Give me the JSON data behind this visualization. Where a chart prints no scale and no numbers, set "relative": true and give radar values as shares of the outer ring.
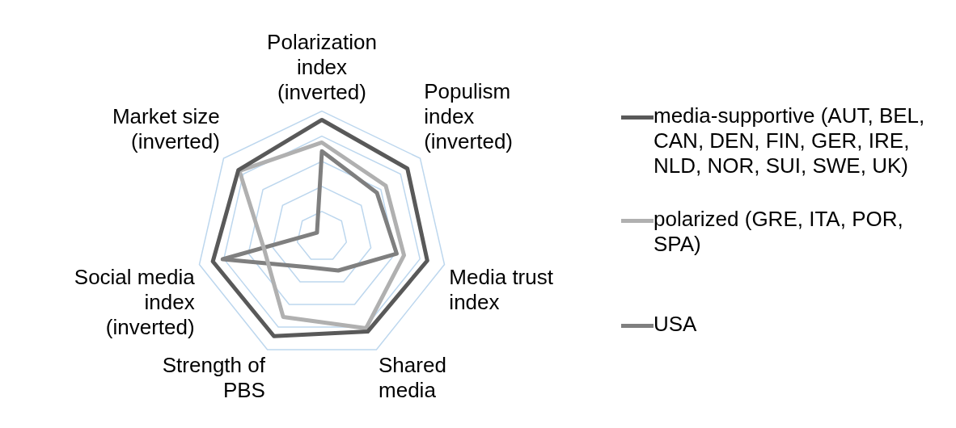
{
  "chart_data": {
    "type": "radar",
    "relative": true,
    "grid": true,
    "legend": "right",
    "marker": "none",
    "categories": [
      "Polarization index (inverted)",
      "Populism index (inverted)",
      "Media trust index",
      "Shared media",
      "Strength of PBS",
      "Social media index (inverted)",
      "Market size (inverted)"
    ],
    "series": [
      {
        "name": "media-supportive (AUT, BEL, CAN, DEN, FIN, GER, IRE, NLD, NOR, SUI, SWE, UK)",
        "color": "#595959",
        "values": [
          0.93,
          0.87,
          0.86,
          0.84,
          0.88,
          0.89,
          0.85
        ]
      },
      {
        "name": "polarized (GRE, ITA, POR, SPA)",
        "color": "#b0b0b0",
        "values": [
          0.75,
          0.65,
          0.67,
          0.81,
          0.71,
          0.47,
          0.84
        ]
      },
      {
        "name": "USA",
        "color": "#7f7f7f",
        "values": [
          0.68,
          0.56,
          0.61,
          0.3,
          0.27,
          0.81,
          0.05
        ]
      }
    ]
  }
}
